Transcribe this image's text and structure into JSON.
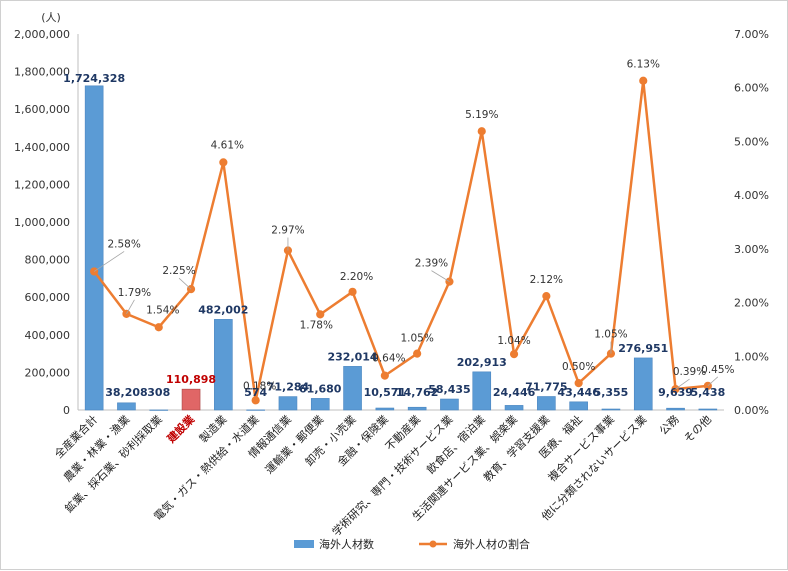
{
  "chart_data": {
    "type": "bar",
    "y_unit": "(人)",
    "categories": [
      "全産業合計",
      "農業・林業・漁業",
      "鉱業、採石業、砂利採取業",
      "建設業",
      "製造業",
      "電気・ガス・熱供給・水道業",
      "情報通信業",
      "運輸業・郵便業",
      "卸売・小売業",
      "金融・保険業",
      "不動産業",
      "学術研究、専門・技術サービス業",
      "飲食店、宿泊業",
      "生活関連サービス業、娯楽業",
      "教育、学習支援業",
      "医療、福祉",
      "複合サービス事業",
      "他に分類されないサービス業",
      "公務",
      "その他"
    ],
    "highlight_category": "建設業",
    "series": [
      {
        "name": "海外人材数",
        "type": "bar",
        "axis": "left",
        "color": "#5b9bd5",
        "highlight_color": "#e06666",
        "values": [
          1724328,
          38208,
          308,
          110898,
          482002,
          574,
          71284,
          61680,
          232014,
          10571,
          14762,
          58435,
          202913,
          24446,
          71775,
          43446,
          5355,
          276951,
          9639,
          5438
        ],
        "labels": [
          "1,724,328",
          "38,208",
          "308",
          "110,898",
          "482,002",
          "574",
          "71,284",
          "61,680",
          "232,014",
          "10,571",
          "14,762",
          "58,435",
          "202,913",
          "24,446",
          "71,775",
          "43,446",
          "5,355",
          "276,951",
          "9,639",
          "5,438"
        ]
      },
      {
        "name": "海外人材の割合",
        "type": "line",
        "axis": "right",
        "color": "#ed7d31",
        "values": [
          2.58,
          1.79,
          1.54,
          2.25,
          4.61,
          0.18,
          2.97,
          1.78,
          2.2,
          0.64,
          1.05,
          2.39,
          5.19,
          1.04,
          2.12,
          0.5,
          1.05,
          6.13,
          0.39,
          0.45
        ],
        "labels": [
          "2.58%",
          "1.79%",
          "1.54%",
          "2.25%",
          "4.61%",
          "0.18%",
          "2.97%",
          "1.78%",
          "2.20%",
          "0.64%",
          "1.05%",
          "2.39%",
          "5.19%",
          "1.04%",
          "2.12%",
          "0.50%",
          "1.05%",
          "6.13%",
          "0.39%",
          "0.45%"
        ]
      }
    ],
    "ylim_left": [
      0,
      2000000
    ],
    "yticks_left": [
      "0",
      "200,000",
      "400,000",
      "600,000",
      "800,000",
      "1,000,000",
      "1,200,000",
      "1,400,000",
      "1,600,000",
      "1,800,000",
      "2,000,000"
    ],
    "ylim_right": [
      0,
      7
    ],
    "yticks_right": [
      "0.00%",
      "1.00%",
      "2.00%",
      "3.00%",
      "4.00%",
      "5.00%",
      "6.00%",
      "7.00%"
    ],
    "grid": false,
    "legend": "bottom-center"
  }
}
